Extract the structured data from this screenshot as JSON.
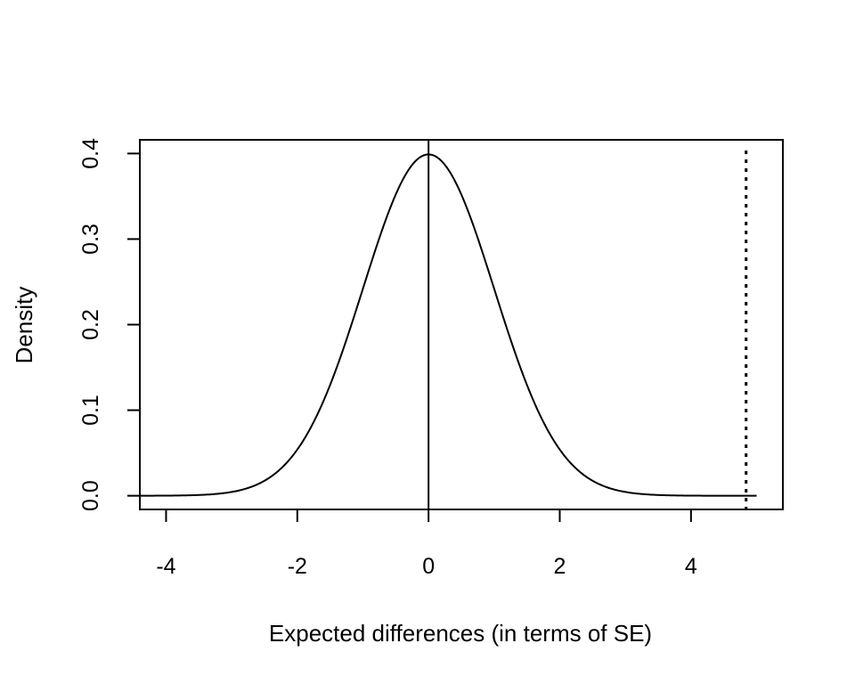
{
  "chart_data": {
    "type": "line",
    "title": "",
    "xlabel": "Expected differences (in terms of SE)",
    "ylabel": "Density",
    "xlim": [
      -4.4,
      5.4
    ],
    "ylim": [
      -0.016,
      0.416
    ],
    "x_ticks": [
      -4,
      -2,
      0,
      2,
      4
    ],
    "y_ticks": [
      0.0,
      0.1,
      0.2,
      0.3,
      0.4
    ],
    "x_tick_labels": [
      "-4",
      "-2",
      "0",
      "2",
      "4"
    ],
    "y_tick_labels": [
      "0.0",
      "0.1",
      "0.2",
      "0.3",
      "0.4"
    ],
    "grid": false,
    "series": [
      {
        "curve": "standard-normal-density",
        "mean": 0,
        "sd": 1,
        "x_range": [
          -4.4,
          5.0
        ],
        "color": "#000000",
        "style": "solid"
      }
    ],
    "reference_lines": [
      {
        "orientation": "vertical",
        "x": 0,
        "style": "solid",
        "color": "#000000"
      },
      {
        "orientation": "vertical",
        "x": 4.84,
        "style": "dotted",
        "color": "#000000"
      }
    ]
  }
}
